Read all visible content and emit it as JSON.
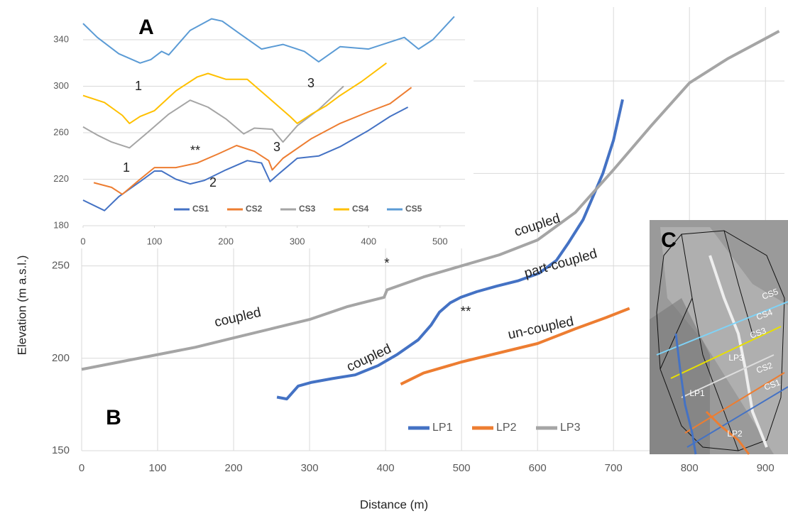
{
  "chart_data": [
    {
      "type": "line",
      "panel": "B",
      "x_label": "Distance (m)",
      "y_label": "Elevation (m a.s.l.)",
      "xlim": [
        0,
        925
      ],
      "ylim": [
        150,
        390
      ],
      "xticks": [
        0,
        100,
        200,
        300,
        400,
        500,
        600,
        700,
        800,
        900
      ],
      "yticks": [
        150,
        200,
        250,
        300,
        350
      ],
      "grid": true,
      "legend": "bottom",
      "series": [
        {
          "name": "LP1",
          "color": "#4472c4",
          "x": [
            257,
            270,
            285,
            303,
            330,
            360,
            390,
            415,
            443,
            460,
            471,
            485,
            499,
            520,
            546,
            575,
            602,
            625,
            640,
            660,
            686,
            700,
            712
          ],
          "values": [
            179,
            178,
            185,
            187,
            189,
            191,
            196,
            202,
            210,
            218,
            225,
            230,
            233,
            236,
            239,
            242,
            246,
            253,
            262,
            275,
            300,
            318,
            340
          ]
        },
        {
          "name": "LP2",
          "color": "#ed7d31",
          "x": [
            420,
            450,
            500,
            550,
            600,
            650,
            690,
            721
          ],
          "values": [
            186,
            192,
            198,
            203,
            208,
            216,
            222,
            227
          ]
        },
        {
          "name": "LP3",
          "color": "#a5a5a5",
          "x": [
            0,
            50,
            100,
            150,
            200,
            250,
            300,
            350,
            398,
            402,
            450,
            500,
            550,
            600,
            650,
            700,
            750,
            800,
            850,
            900,
            918
          ],
          "values": [
            194,
            198,
            202,
            206,
            211,
            216,
            221,
            228,
            233,
            237,
            244,
            250,
            256,
            264,
            279,
            302,
            326,
            349,
            362,
            373,
            377
          ]
        }
      ],
      "annotations": [
        "coupled",
        "*",
        "coupled",
        "**",
        "part-coupled",
        "un-coupled",
        "coupled"
      ]
    },
    {
      "type": "line",
      "panel": "A",
      "xlim": [
        0,
        535
      ],
      "ylim": [
        180,
        362
      ],
      "xticks": [
        0,
        100,
        200,
        300,
        400,
        500
      ],
      "yticks": [
        180,
        220,
        260,
        300,
        340
      ],
      "grid": true,
      "legend": "bottom",
      "series": [
        {
          "name": "CS1",
          "color": "#4472c4",
          "x": [
            0,
            30,
            50,
            80,
            100,
            110,
            130,
            150,
            170,
            200,
            230,
            250,
            262,
            275,
            300,
            330,
            360,
            400,
            430,
            455
          ],
          "values": [
            202,
            193,
            205,
            218,
            227,
            227,
            220,
            216,
            219,
            228,
            236,
            234,
            218,
            225,
            238,
            240,
            248,
            262,
            274,
            282
          ]
        },
        {
          "name": "CS2",
          "color": "#ed7d31",
          "x": [
            15,
            40,
            55,
            80,
            100,
            130,
            160,
            190,
            215,
            240,
            260,
            265,
            280,
            320,
            360,
            400,
            430,
            460
          ],
          "values": [
            217,
            213,
            207,
            220,
            230,
            230,
            234,
            242,
            249,
            244,
            236,
            228,
            238,
            255,
            268,
            278,
            285,
            299
          ]
        },
        {
          "name": "CS3",
          "color": "#a5a5a5",
          "x": [
            0,
            20,
            40,
            65,
            90,
            120,
            150,
            175,
            200,
            225,
            240,
            265,
            280,
            300,
            330,
            365
          ],
          "values": [
            265,
            258,
            252,
            247,
            260,
            276,
            288,
            282,
            272,
            259,
            264,
            263,
            252,
            266,
            280,
            300
          ]
        },
        {
          "name": "CS4",
          "color": "#ffc000",
          "x": [
            0,
            30,
            55,
            65,
            80,
            100,
            130,
            160,
            175,
            200,
            230,
            260,
            290,
            300,
            320,
            340,
            360,
            390,
            425
          ],
          "values": [
            292,
            286,
            275,
            268,
            274,
            279,
            296,
            308,
            311,
            306,
            306,
            290,
            274,
            268,
            276,
            283,
            292,
            304,
            320
          ]
        },
        {
          "name": "CS5",
          "color": "#5b9bd5",
          "x": [
            0,
            20,
            50,
            80,
            95,
            110,
            120,
            150,
            180,
            195,
            220,
            250,
            280,
            310,
            330,
            360,
            400,
            450,
            470,
            490,
            520
          ],
          "values": [
            354,
            342,
            328,
            320,
            323,
            330,
            327,
            348,
            358,
            356,
            345,
            332,
            336,
            330,
            321,
            334,
            332,
            342,
            332,
            340,
            360
          ]
        }
      ],
      "annotations": [
        "1",
        "3",
        "**",
        "1",
        "3",
        "2"
      ]
    }
  ],
  "panel_labels": [
    "B",
    "A"
  ],
  "map_panel": {
    "label": "C",
    "labels": [
      "CS5",
      "CS4",
      "CS3",
      "CS2",
      "CS1",
      "LP3",
      "LP1",
      "LP2"
    ]
  }
}
